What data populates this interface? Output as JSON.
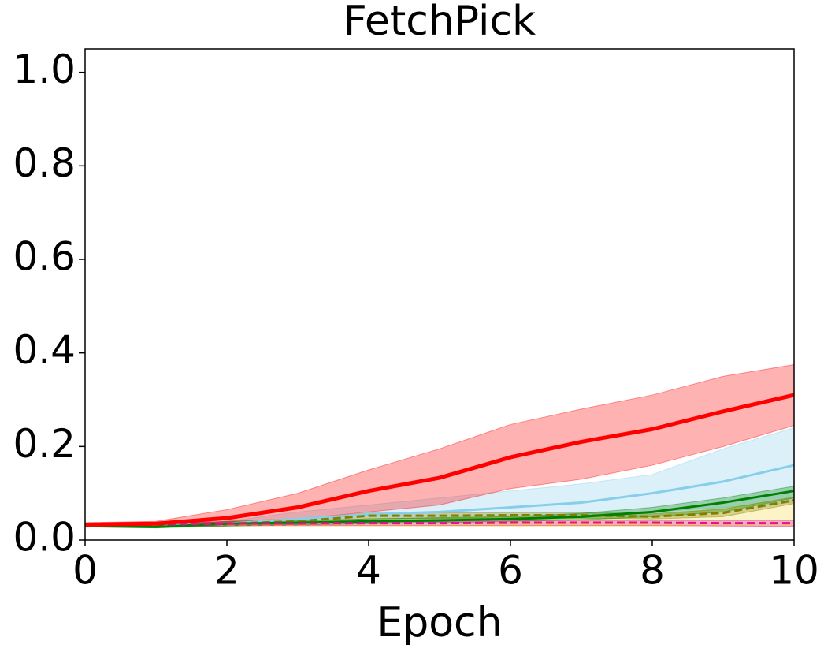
{
  "chart_data": {
    "type": "line",
    "title": "FetchPick",
    "xlabel": "Epoch",
    "x": [
      0,
      1,
      2,
      3,
      4,
      5,
      6,
      7,
      8,
      9,
      10
    ],
    "xlim": [
      0,
      10
    ],
    "xticks": [
      0,
      2,
      4,
      6,
      8,
      10
    ],
    "ylim": [
      0,
      1.05
    ],
    "yticks": [
      {
        "value": 0,
        "label": "0.0"
      },
      0.2,
      0.4,
      0.6,
      0.8,
      {
        "value": 1,
        "label": "1.0"
      }
    ],
    "series": [
      {
        "color": "#87ceeb",
        "dashed": false,
        "width": 3,
        "values": [
          0.03,
          0.03,
          0.035,
          0.045,
          0.055,
          0.06,
          0.07,
          0.08,
          0.1,
          0.125,
          0.16
        ],
        "lower": [
          0.028,
          0.028,
          0.03,
          0.035,
          0.04,
          0.045,
          0.05,
          0.055,
          0.06,
          0.07,
          0.08
        ],
        "upper": [
          0.033,
          0.033,
          0.04,
          0.06,
          0.075,
          0.09,
          0.105,
          0.12,
          0.14,
          0.195,
          0.24
        ]
      },
      {
        "color": "#ffd700",
        "band_color": "#f5d742",
        "dashed": true,
        "width": 3,
        "values": [
          0.033,
          0.033,
          0.034,
          0.034,
          0.035,
          0.035,
          0.035,
          0.035,
          0.035,
          0.035,
          0.035
        ],
        "lower": [
          0.03,
          0.03,
          0.03,
          0.03,
          0.03,
          0.03,
          0.03,
          0.03,
          0.03,
          0.03,
          0.03
        ],
        "upper": [
          0.036,
          0.036,
          0.038,
          0.04,
          0.045,
          0.048,
          0.05,
          0.05,
          0.052,
          0.068,
          0.09
        ]
      },
      {
        "color": "#808000",
        "dashed": true,
        "width": 3,
        "values": [
          0.03,
          0.03,
          0.035,
          0.04,
          0.052,
          0.052,
          0.053,
          0.053,
          0.05,
          0.058,
          0.085
        ],
        "lower": [
          0.028,
          0.028,
          0.03,
          0.034,
          0.046,
          0.046,
          0.047,
          0.047,
          0.045,
          0.05,
          0.078
        ],
        "upper": [
          0.033,
          0.033,
          0.04,
          0.046,
          0.058,
          0.058,
          0.059,
          0.059,
          0.056,
          0.066,
          0.092
        ]
      },
      {
        "color": "#008000",
        "dashed": false,
        "width": 3,
        "values": [
          0.03,
          0.028,
          0.035,
          0.037,
          0.04,
          0.042,
          0.045,
          0.05,
          0.06,
          0.08,
          0.105
        ],
        "lower": [
          0.028,
          0.026,
          0.03,
          0.032,
          0.035,
          0.037,
          0.04,
          0.043,
          0.05,
          0.06,
          0.09
        ],
        "upper": [
          0.033,
          0.03,
          0.04,
          0.042,
          0.045,
          0.048,
          0.05,
          0.057,
          0.07,
          0.09,
          0.115
        ]
      },
      {
        "color": "#e0109a",
        "dashed": true,
        "width": 3,
        "values": [
          0.033,
          0.034,
          0.035,
          0.035,
          0.036,
          0.036,
          0.037,
          0.037,
          0.037,
          0.036,
          0.036
        ],
        "lower": [
          0.03,
          0.03,
          0.031,
          0.031,
          0.031,
          0.031,
          0.031,
          0.031,
          0.031,
          0.03,
          0.029
        ],
        "upper": [
          0.036,
          0.037,
          0.039,
          0.039,
          0.04,
          0.04,
          0.042,
          0.042,
          0.042,
          0.042,
          0.042
        ]
      },
      {
        "color": "#ff0000",
        "dashed": false,
        "width": 5,
        "values": [
          0.033,
          0.035,
          0.047,
          0.07,
          0.105,
          0.133,
          0.177,
          0.21,
          0.237,
          0.275,
          0.31
        ],
        "lower": [
          0.03,
          0.03,
          0.035,
          0.045,
          0.06,
          0.075,
          0.11,
          0.13,
          0.16,
          0.2,
          0.245
        ],
        "upper": [
          0.037,
          0.04,
          0.065,
          0.1,
          0.15,
          0.195,
          0.247,
          0.28,
          0.31,
          0.35,
          0.375
        ]
      }
    ]
  }
}
